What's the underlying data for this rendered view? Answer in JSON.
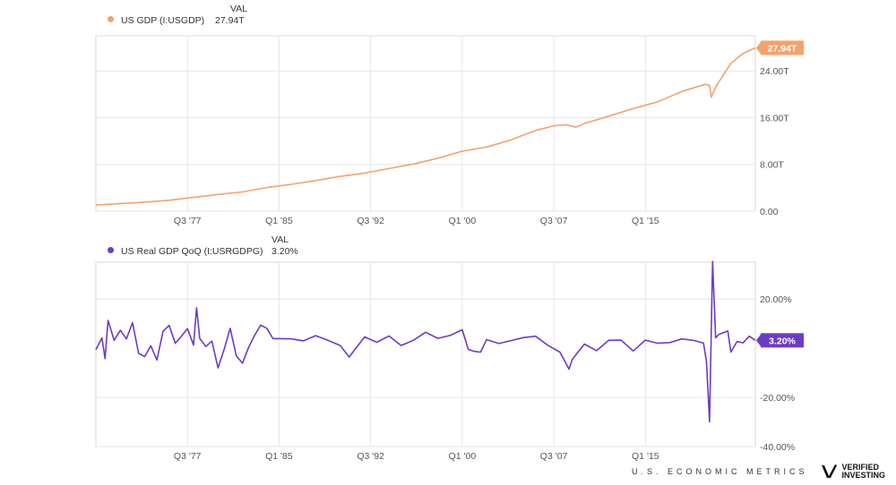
{
  "legend_header": "VAL",
  "chart_data": [
    {
      "type": "line",
      "series": [
        {
          "name": "US GDP (I:USGDP)",
          "last_value": "27.94T",
          "color": "#f4a26b"
        }
      ],
      "y_unit": "trillions USD",
      "ylim": [
        0,
        30
      ],
      "y_ticks": [
        {
          "v": 0,
          "label": "0.00"
        },
        {
          "v": 8,
          "label": "8.00T"
        },
        {
          "v": 16,
          "label": "16.00T"
        },
        {
          "v": 24,
          "label": "24.00T"
        }
      ],
      "x_ticks": [
        {
          "t": 1977.5,
          "label": "Q3 '77"
        },
        {
          "t": 1985.0,
          "label": "Q1 '85"
        },
        {
          "t": 1992.5,
          "label": "Q3 '92"
        },
        {
          "t": 2000.0,
          "label": "Q1 '00"
        },
        {
          "t": 2007.5,
          "label": "Q3 '07"
        },
        {
          "t": 2015.0,
          "label": "Q1 '15"
        }
      ],
      "xlim": [
        1970.0,
        2024.0
      ],
      "points": [
        [
          1970,
          1.07
        ],
        [
          1972,
          1.28
        ],
        [
          1974,
          1.55
        ],
        [
          1976,
          1.87
        ],
        [
          1978,
          2.35
        ],
        [
          1980,
          2.86
        ],
        [
          1982,
          3.29
        ],
        [
          1984,
          4.04
        ],
        [
          1986,
          4.59
        ],
        [
          1988,
          5.24
        ],
        [
          1990,
          5.96
        ],
        [
          1992,
          6.52
        ],
        [
          1994,
          7.29
        ],
        [
          1996,
          8.07
        ],
        [
          1998,
          9.06
        ],
        [
          2000,
          10.25
        ],
        [
          2002,
          10.98
        ],
        [
          2004,
          12.2
        ],
        [
          2006,
          13.8
        ],
        [
          2007.5,
          14.6
        ],
        [
          2008.5,
          14.8
        ],
        [
          2009.3,
          14.35
        ],
        [
          2010,
          15.0
        ],
        [
          2012,
          16.25
        ],
        [
          2014,
          17.55
        ],
        [
          2016,
          18.7
        ],
        [
          2018,
          20.5
        ],
        [
          2019.9,
          21.7
        ],
        [
          2020.25,
          21.5
        ],
        [
          2020.4,
          19.5
        ],
        [
          2020.8,
          21.4
        ],
        [
          2022,
          25.3
        ],
        [
          2023,
          27.0
        ],
        [
          2024,
          27.94
        ]
      ],
      "grid": true,
      "value_badge": "right"
    },
    {
      "type": "line",
      "series": [
        {
          "name": "US Real GDP QoQ (I:USRGDPG)",
          "last_value": "3.20%",
          "color": "#6c3bc6"
        }
      ],
      "y_unit": "percent",
      "ylim": [
        -40,
        35
      ],
      "y_ticks": [
        {
          "v": 20,
          "label": "20.00%"
        },
        {
          "v": -20,
          "label": "-20.00%"
        },
        {
          "v": -40,
          "label": "-40.00%"
        }
      ],
      "x_ticks": [
        {
          "t": 1977.5,
          "label": "Q3 '77"
        },
        {
          "t": 1985.0,
          "label": "Q1 '85"
        },
        {
          "t": 1992.5,
          "label": "Q3 '92"
        },
        {
          "t": 2000.0,
          "label": "Q1 '00"
        },
        {
          "t": 2007.5,
          "label": "Q3 '07"
        },
        {
          "t": 2015.0,
          "label": "Q1 '15"
        }
      ],
      "xlim": [
        1970.0,
        2024.0
      ],
      "points": [
        [
          1970,
          -0.6
        ],
        [
          1970.5,
          4.2
        ],
        [
          1970.75,
          -4.2
        ],
        [
          1971,
          11.3
        ],
        [
          1971.5,
          3.2
        ],
        [
          1972,
          7.3
        ],
        [
          1972.5,
          3.8
        ],
        [
          1973,
          10.4
        ],
        [
          1973.5,
          -2.1
        ],
        [
          1974,
          -3.4
        ],
        [
          1974.5,
          1.0
        ],
        [
          1975,
          -4.8
        ],
        [
          1975.5,
          6.9
        ],
        [
          1976,
          9.3
        ],
        [
          1976.5,
          2.0
        ],
        [
          1977,
          4.8
        ],
        [
          1977.5,
          8.0
        ],
        [
          1978,
          1.3
        ],
        [
          1978.25,
          16.4
        ],
        [
          1978.5,
          4.0
        ],
        [
          1979,
          0.7
        ],
        [
          1979.5,
          2.9
        ],
        [
          1980,
          -8.0
        ],
        [
          1980.5,
          -0.5
        ],
        [
          1981,
          8.1
        ],
        [
          1981.5,
          -3.1
        ],
        [
          1982,
          -6.1
        ],
        [
          1982.5,
          0.3
        ],
        [
          1983,
          5.3
        ],
        [
          1983.5,
          9.4
        ],
        [
          1984,
          8.1
        ],
        [
          1984.5,
          3.9
        ],
        [
          1985,
          3.9
        ],
        [
          1986,
          3.8
        ],
        [
          1987,
          3.0
        ],
        [
          1988,
          5.1
        ],
        [
          1989,
          3.2
        ],
        [
          1990,
          1.1
        ],
        [
          1990.75,
          -3.6
        ],
        [
          1991,
          -1.9
        ],
        [
          1992,
          4.6
        ],
        [
          1993,
          2.4
        ],
        [
          1994,
          5.0
        ],
        [
          1995,
          1.1
        ],
        [
          1996,
          3.2
        ],
        [
          1997,
          6.5
        ],
        [
          1998,
          4.0
        ],
        [
          1999,
          5.2
        ],
        [
          2000,
          7.5
        ],
        [
          2000.5,
          -0.5
        ],
        [
          2001,
          -1.3
        ],
        [
          2001.5,
          -1.6
        ],
        [
          2002,
          3.5
        ],
        [
          2003,
          1.9
        ],
        [
          2004,
          3.1
        ],
        [
          2005,
          4.3
        ],
        [
          2006,
          4.9
        ],
        [
          2007,
          1.2
        ],
        [
          2008,
          -1.6
        ],
        [
          2008.75,
          -8.5
        ],
        [
          2009,
          -4.6
        ],
        [
          2010,
          1.7
        ],
        [
          2011,
          -1.0
        ],
        [
          2012,
          3.2
        ],
        [
          2013,
          3.3
        ],
        [
          2014,
          -1.1
        ],
        [
          2015,
          3.3
        ],
        [
          2016,
          2.0
        ],
        [
          2017,
          2.3
        ],
        [
          2018,
          3.8
        ],
        [
          2019,
          3.1
        ],
        [
          2019.75,
          2.1
        ],
        [
          2020,
          -5.5
        ],
        [
          2020.25,
          -29.9
        ],
        [
          2020.5,
          35.3
        ],
        [
          2020.75,
          4.2
        ],
        [
          2021,
          5.6
        ],
        [
          2021.75,
          7.0
        ],
        [
          2022,
          -1.6
        ],
        [
          2022.5,
          2.7
        ],
        [
          2023,
          2.2
        ],
        [
          2023.5,
          4.9
        ],
        [
          2024,
          3.2
        ]
      ],
      "grid": true,
      "value_badge": "right"
    }
  ],
  "footer": {
    "text": "U.S. ECONOMIC METRICS",
    "brand_line1": "VERIFIED",
    "brand_line2": "INVESTING"
  }
}
